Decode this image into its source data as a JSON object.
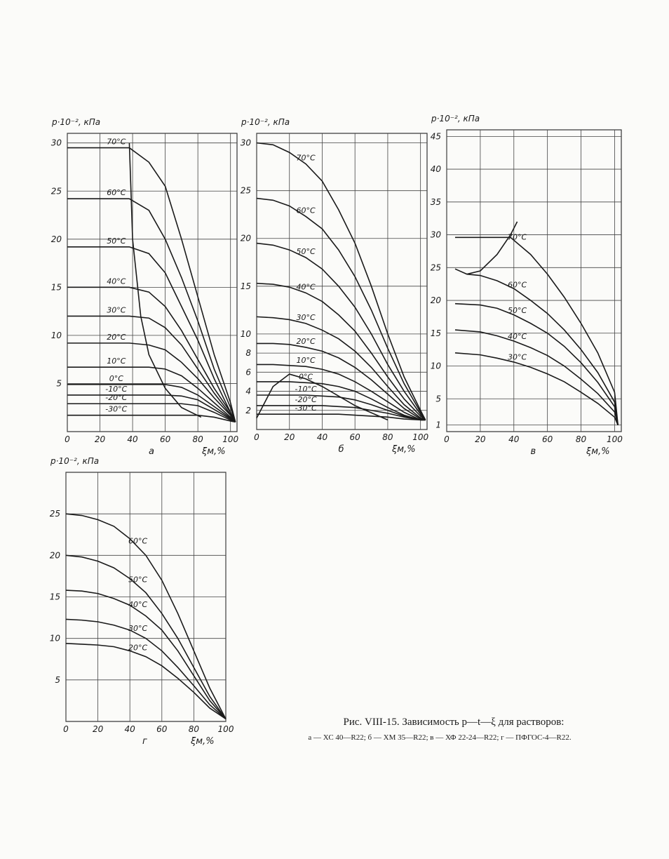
{
  "chart_data": [
    {
      "type": "line",
      "ylabel": "p·10⁻², кПа",
      "xlabel": "ξм,%",
      "panel": "а",
      "color": "#1a1a1a",
      "grid": true,
      "xlim": [
        0,
        104
      ],
      "ylim": [
        0,
        31
      ],
      "xticks": [
        0,
        20,
        40,
        60,
        80,
        100
      ],
      "yticks": [
        5,
        10,
        15,
        20,
        25,
        30
      ],
      "series": [
        {
          "name": "70°C",
          "x": [
            0,
            38,
            50,
            60,
            70,
            80,
            90,
            100,
            103
          ],
          "values": [
            29.5,
            29.5,
            28,
            25.5,
            20,
            14,
            8,
            3,
            1
          ]
        },
        {
          "name": "60°C",
          "x": [
            0,
            38,
            50,
            60,
            70,
            80,
            90,
            100,
            103
          ],
          "values": [
            24.2,
            24.2,
            23,
            20,
            16,
            11.5,
            6.5,
            2.5,
            1
          ]
        },
        {
          "name": "50°C",
          "x": [
            0,
            38,
            50,
            60,
            70,
            80,
            90,
            100,
            103
          ],
          "values": [
            19.2,
            19.2,
            18.5,
            16.5,
            13,
            9.5,
            5.5,
            2,
            1
          ]
        },
        {
          "name": "40°C",
          "x": [
            0,
            38,
            50,
            60,
            70,
            80,
            90,
            100,
            103
          ],
          "values": [
            15,
            15,
            14.5,
            13,
            10.5,
            7.5,
            4.5,
            2,
            1
          ]
        },
        {
          "name": "30°C",
          "x": [
            0,
            38,
            50,
            60,
            70,
            80,
            90,
            100,
            103
          ],
          "values": [
            12,
            12,
            11.8,
            10.8,
            9,
            6.5,
            4,
            1.8,
            1
          ]
        },
        {
          "name": "20°C",
          "x": [
            0,
            38,
            50,
            60,
            70,
            80,
            90,
            100,
            103
          ],
          "values": [
            9.2,
            9.2,
            9,
            8.5,
            7.2,
            5.5,
            3.5,
            1.7,
            1
          ]
        },
        {
          "name": "10°C",
          "x": [
            0,
            38,
            50,
            60,
            70,
            80,
            90,
            100,
            103
          ],
          "values": [
            6.7,
            6.7,
            6.7,
            6.5,
            5.8,
            4.5,
            3,
            1.5,
            1
          ]
        },
        {
          "name": "0°C",
          "x": [
            0,
            38,
            50,
            60,
            70,
            80,
            90,
            100,
            103
          ],
          "values": [
            4.9,
            4.9,
            4.9,
            4.9,
            4.6,
            3.8,
            2.6,
            1.4,
            1
          ]
        },
        {
          "name": "-10°C",
          "x": [
            0,
            38,
            50,
            60,
            70,
            80,
            90,
            100,
            103
          ],
          "values": [
            3.8,
            3.8,
            3.8,
            3.8,
            3.7,
            3.3,
            2.3,
            1.3,
            1
          ]
        },
        {
          "name": "-20°C",
          "x": [
            0,
            38,
            50,
            60,
            70,
            80,
            90,
            100,
            103
          ],
          "values": [
            2.9,
            2.9,
            2.9,
            2.9,
            2.9,
            2.7,
            2,
            1.2,
            1
          ]
        },
        {
          "name": "-30°C",
          "x": [
            0,
            38,
            50,
            60,
            70,
            80,
            90,
            100,
            103
          ],
          "values": [
            1.7,
            1.7,
            1.7,
            1.7,
            1.7,
            1.7,
            1.5,
            1.1,
            1
          ]
        },
        {
          "x": [
            38,
            40,
            45,
            50,
            60,
            70,
            82
          ],
          "values": [
            30,
            20,
            12,
            8,
            4.5,
            2.5,
            1.5
          ]
        }
      ]
    },
    {
      "type": "line",
      "ylabel": "p·10⁻², кПа",
      "xlabel": "ξм,%",
      "panel": "б",
      "color": "#1a1a1a",
      "grid": true,
      "xlim": [
        0,
        104
      ],
      "ylim": [
        0,
        31
      ],
      "xticks": [
        0,
        20,
        40,
        60,
        80,
        100
      ],
      "yticks": [
        2,
        4,
        6,
        8,
        10,
        15,
        20,
        25,
        30
      ],
      "series": [
        {
          "name": "70°C",
          "x": [
            0,
            10,
            20,
            30,
            40,
            50,
            60,
            70,
            80,
            90,
            100,
            103
          ],
          "values": [
            30,
            29.8,
            29,
            27.8,
            26,
            23,
            19.5,
            15,
            10,
            5.5,
            2,
            1
          ]
        },
        {
          "name": "60°C",
          "x": [
            0,
            10,
            20,
            30,
            40,
            50,
            60,
            70,
            80,
            90,
            100,
            103
          ],
          "values": [
            24.2,
            24,
            23.4,
            22.3,
            21,
            18.8,
            16,
            12.5,
            8.5,
            4.8,
            1.8,
            1
          ]
        },
        {
          "name": "50°C",
          "x": [
            0,
            10,
            20,
            30,
            40,
            50,
            60,
            70,
            80,
            90,
            100,
            103
          ],
          "values": [
            19.5,
            19.3,
            18.8,
            18,
            16.8,
            15,
            12.8,
            10,
            6.8,
            4,
            1.6,
            1
          ]
        },
        {
          "name": "40°C",
          "x": [
            0,
            10,
            20,
            30,
            40,
            50,
            60,
            70,
            80,
            90,
            100,
            103
          ],
          "values": [
            15.3,
            15.2,
            14.9,
            14.3,
            13.4,
            12,
            10.3,
            8,
            5.5,
            3.2,
            1.4,
            1
          ]
        },
        {
          "name": "30°C",
          "x": [
            0,
            10,
            20,
            30,
            40,
            50,
            60,
            70,
            80,
            90,
            100,
            103
          ],
          "values": [
            11.8,
            11.7,
            11.5,
            11.1,
            10.4,
            9.5,
            8.2,
            6.5,
            4.5,
            2.6,
            1.2,
            1
          ]
        },
        {
          "name": "20°C",
          "x": [
            0,
            10,
            20,
            30,
            40,
            50,
            60,
            70,
            80,
            90,
            100,
            103
          ],
          "values": [
            9,
            9,
            8.9,
            8.6,
            8.2,
            7.5,
            6.5,
            5.2,
            3.7,
            2.2,
            1.1,
            1
          ]
        },
        {
          "name": "10°C",
          "x": [
            0,
            10,
            20,
            30,
            40,
            50,
            60,
            70,
            80,
            90,
            100,
            103
          ],
          "values": [
            6.8,
            6.8,
            6.7,
            6.6,
            6.3,
            5.8,
            5,
            4,
            2.9,
            1.8,
            1,
            1
          ]
        },
        {
          "name": "0°C",
          "x": [
            0,
            10,
            20,
            30,
            40,
            50,
            60,
            70,
            80,
            90,
            100,
            103
          ],
          "values": [
            5,
            5,
            5,
            4.9,
            4.8,
            4.5,
            4,
            3.2,
            2.3,
            1.5,
            1,
            1
          ]
        },
        {
          "name": "-10°C",
          "x": [
            0,
            10,
            20,
            30,
            40,
            50,
            60,
            70,
            80,
            90,
            100,
            103
          ],
          "values": [
            3.6,
            3.6,
            3.6,
            3.6,
            3.5,
            3.4,
            3.1,
            2.6,
            2,
            1.4,
            1,
            1
          ]
        },
        {
          "name": "-20°C",
          "x": [
            0,
            10,
            20,
            30,
            40,
            50,
            60,
            70,
            80,
            90,
            100,
            103
          ],
          "values": [
            2.5,
            2.5,
            2.5,
            2.5,
            2.5,
            2.4,
            2.3,
            2,
            1.7,
            1.3,
            1,
            1
          ]
        },
        {
          "name": "-30°C",
          "x": [
            0,
            10,
            20,
            30,
            40,
            50,
            60,
            70,
            80,
            90,
            100,
            103
          ],
          "values": [
            1.6,
            1.6,
            1.6,
            1.6,
            1.6,
            1.6,
            1.5,
            1.4,
            1.3,
            1.1,
            1,
            1
          ]
        },
        {
          "x": [
            0,
            10,
            20,
            30,
            40,
            60,
            80
          ],
          "values": [
            1.2,
            4.5,
            5.8,
            5.3,
            4.5,
            2.5,
            1
          ]
        }
      ]
    },
    {
      "type": "line",
      "ylabel": "p·10⁻², кПа",
      "xlabel": "ξм,%",
      "panel": "в",
      "color": "#1a1a1a",
      "grid": true,
      "xlim": [
        0,
        104
      ],
      "ylim": [
        0,
        46
      ],
      "xticks": [
        0,
        20,
        40,
        60,
        80,
        100
      ],
      "yticks": [
        1,
        5,
        10,
        15,
        20,
        25,
        30,
        35,
        40,
        45
      ],
      "series": [
        {
          "name": "70°C",
          "x": [
            5,
            38,
            50,
            60,
            70,
            80,
            90,
            100,
            102
          ],
          "values": [
            29.6,
            29.6,
            27,
            24,
            20.5,
            16.5,
            12,
            6,
            1
          ]
        },
        {
          "name": "60°C",
          "x": [
            12,
            20,
            30,
            40,
            50,
            60,
            70,
            80,
            90,
            100,
            102
          ],
          "values": [
            24,
            23.8,
            23,
            21.8,
            20,
            18,
            15.5,
            12.5,
            9,
            4.5,
            1
          ]
        },
        {
          "name": "50°C",
          "x": [
            5,
            20,
            30,
            40,
            50,
            60,
            70,
            80,
            90,
            100,
            102
          ],
          "values": [
            19.5,
            19.3,
            18.8,
            17.8,
            16.5,
            15,
            13,
            10.5,
            7.5,
            3.8,
            1
          ]
        },
        {
          "name": "40°C",
          "x": [
            5,
            20,
            30,
            40,
            50,
            60,
            70,
            80,
            90,
            100,
            102
          ],
          "values": [
            15.5,
            15.2,
            14.6,
            13.8,
            12.8,
            11.6,
            10,
            8,
            5.8,
            3,
            1
          ]
        },
        {
          "name": "30°C",
          "x": [
            5,
            20,
            30,
            40,
            50,
            60,
            70,
            80,
            90,
            100,
            102
          ],
          "values": [
            12,
            11.7,
            11.2,
            10.6,
            9.8,
            8.8,
            7.6,
            6,
            4.3,
            2.2,
            1
          ]
        },
        {
          "x": [
            5,
            12,
            20,
            30,
            38,
            42
          ],
          "values": [
            24.8,
            24,
            24.5,
            27,
            30,
            32
          ]
        }
      ]
    },
    {
      "type": "line",
      "ylabel": "p·10⁻², кПа",
      "xlabel": "ξм,%",
      "panel": "г",
      "color": "#1a1a1a",
      "grid": true,
      "xlim": [
        0,
        100
      ],
      "ylim": [
        0,
        30
      ],
      "xticks": [
        0,
        20,
        40,
        60,
        80,
        100
      ],
      "yticks": [
        5,
        10,
        15,
        20,
        25
      ],
      "series": [
        {
          "name": "60°C",
          "x": [
            0,
            10,
            20,
            30,
            40,
            50,
            60,
            70,
            80,
            90,
            100
          ],
          "values": [
            25,
            24.8,
            24.3,
            23.5,
            22,
            20,
            17,
            13,
            8.5,
            4,
            0.3
          ]
        },
        {
          "name": "50°C",
          "x": [
            0,
            10,
            20,
            30,
            40,
            50,
            60,
            70,
            80,
            90,
            100
          ],
          "values": [
            20,
            19.8,
            19.3,
            18.5,
            17.2,
            15.5,
            13,
            10,
            6.5,
            3,
            0.3
          ]
        },
        {
          "name": "40°C",
          "x": [
            0,
            10,
            20,
            30,
            40,
            50,
            60,
            70,
            80,
            90,
            100
          ],
          "values": [
            15.8,
            15.7,
            15.4,
            14.8,
            14,
            12.7,
            11,
            8.5,
            5.5,
            2.5,
            0.3
          ]
        },
        {
          "name": "30°C",
          "x": [
            0,
            10,
            20,
            30,
            40,
            50,
            60,
            70,
            80,
            90,
            100
          ],
          "values": [
            12.3,
            12.2,
            12,
            11.6,
            11,
            10,
            8.5,
            6.5,
            4.3,
            2,
            0.3
          ]
        },
        {
          "name": "20°C",
          "x": [
            0,
            10,
            20,
            30,
            40,
            50,
            60,
            70,
            80,
            90,
            100
          ],
          "values": [
            9.4,
            9.3,
            9.2,
            9,
            8.5,
            7.8,
            6.7,
            5.2,
            3.5,
            1.6,
            0.3
          ]
        }
      ]
    }
  ],
  "caption": {
    "title": "Рис. VIII-15. Зависимость p—t—ξ для растворов:",
    "legend": "а — ХС 40—R22; б — ХМ 35—R22; в — ХФ 22-24—R22; г — ПФГОС-4—R22."
  }
}
